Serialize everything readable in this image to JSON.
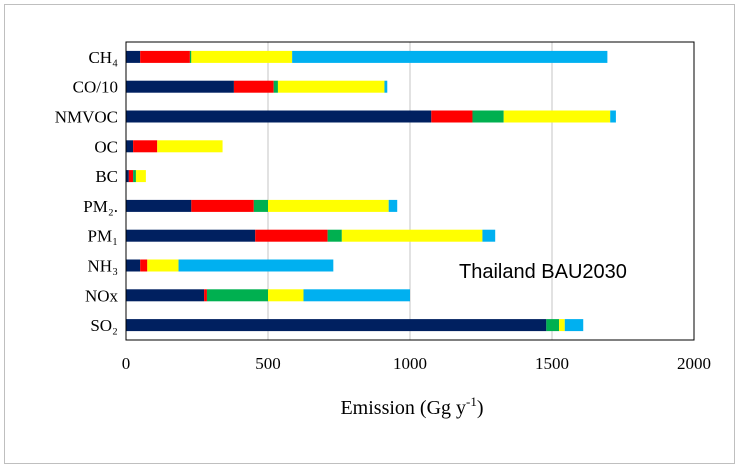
{
  "chart_data": {
    "type": "bar",
    "orientation": "horizontal",
    "stacked": true,
    "categories": [
      "CH₄",
      "CO/10",
      "NMVOC",
      "OC",
      "BC",
      "PM₂.",
      "PM₁",
      "NH₃",
      "NOx",
      "SO₂"
    ],
    "series": [
      {
        "color": "#002060",
        "values": [
          50,
          380,
          1075,
          25,
          10,
          230,
          455,
          50,
          275,
          1480
        ]
      },
      {
        "color": "#ff0000",
        "values": [
          175,
          140,
          145,
          85,
          15,
          220,
          255,
          25,
          10,
          0
        ]
      },
      {
        "color": "#00b050",
        "values": [
          5,
          15,
          110,
          0,
          10,
          50,
          50,
          0,
          215,
          45
        ]
      },
      {
        "color": "#ffff00",
        "values": [
          355,
          375,
          375,
          230,
          35,
          425,
          495,
          110,
          125,
          20
        ]
      },
      {
        "color": "#00b0f0",
        "values": [
          1110,
          10,
          20,
          0,
          0,
          30,
          45,
          545,
          375,
          65
        ]
      }
    ],
    "xlabel_main": "Emission (Gg y",
    "xlabel_sup": "-1",
    "xlabel_end": ")",
    "xlim": [
      0,
      2000
    ],
    "xticks": [
      "0",
      "500",
      "1000",
      "1500",
      "2000"
    ],
    "gridlines": "vertical",
    "annotation": "Thailand BAU2030"
  }
}
